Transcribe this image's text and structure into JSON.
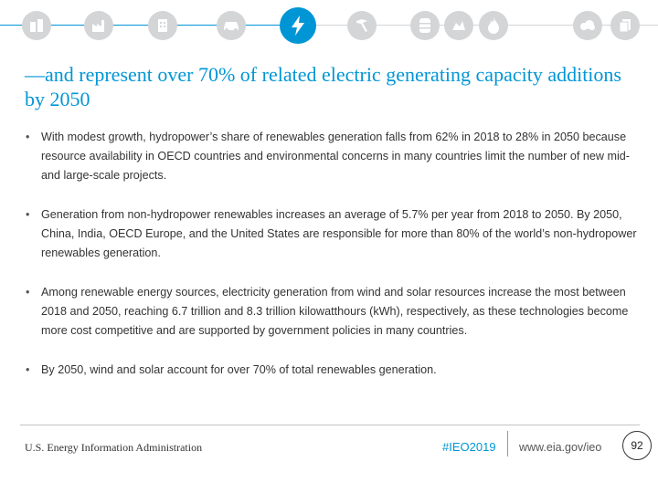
{
  "header": {
    "icons": [
      "buildings-icon",
      "industry-icon",
      "commercial-icon",
      "transportation-icon",
      "electricity-icon",
      "refinery-icon",
      "oil-barrel-icon",
      "coal-icon",
      "natural-gas-flame-icon",
      "emissions-icon",
      "documents-icon"
    ],
    "active_icon": "electricity-icon",
    "accent_color": "#0096d6",
    "inactive_color": "#d3d5d7"
  },
  "title": "—and represent over 70% of related electric generating capacity additions by 2050",
  "bullets": [
    "With modest growth, hydropower’s share of renewables generation falls from 62% in 2018 to 28% in 2050 because resource availability in OECD countries and environmental concerns in many countries limit the number of new mid- and large-scale projects.",
    "Generation from non-hydropower renewables increases an average of 5.7% per year from 2018 to 2050. By 2050, China, India, OECD Europe, and the United States are responsible for more than 80% of the world’s non-hydropower renewables generation.",
    "Among renewable energy sources, electricity generation from wind and solar resources increase the most between 2018 and 2050, reaching 6.7 trillion and 8.3 trillion kilowatthours (kWh), respectively, as these technologies become more cost competitive and are supported by government policies in many countries.",
    "By 2050, wind and solar account for over 70% of total renewables generation."
  ],
  "bullet_symbol": "•",
  "footer": {
    "organization": "U.S. Energy Information Administration",
    "hashtag": "#IEO2019",
    "url": "www.eia.gov/ieo",
    "page_number": "92"
  }
}
